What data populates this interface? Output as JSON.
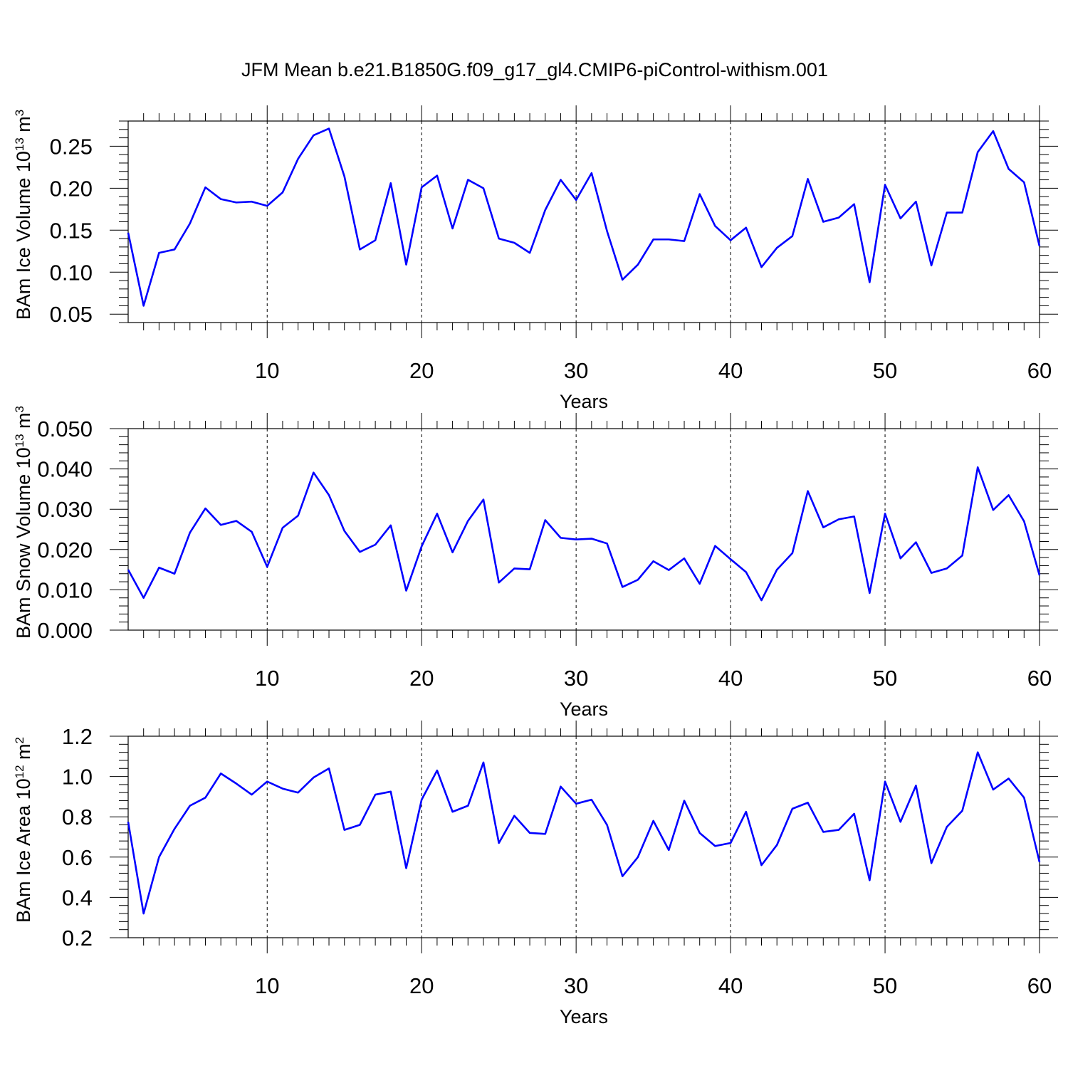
{
  "title": "JFM Mean b.e21.B1850G.f09_g17_gl4.CMIP6-piControl-withism.001",
  "chart_data": [
    {
      "type": "line",
      "id": "ice-volume",
      "ylabel": "BAm Ice Volume",
      "ylabel_scale": "10",
      "ylabel_scale_exp": "13",
      "ylabel_unit": "m",
      "ylabel_unit_exp": "3",
      "xlabel": "Years",
      "xlim": [
        1,
        60
      ],
      "ylim": [
        0.04,
        0.28
      ],
      "x_ticks": [
        10,
        20,
        30,
        40,
        50,
        60
      ],
      "y_ticks": [
        0.05,
        0.1,
        0.15,
        0.2,
        0.25
      ],
      "y_tick_labels": [
        "0.05",
        "0.10",
        "0.15",
        "0.20",
        "0.25"
      ],
      "grid_x": "dashed",
      "line_color": "#0000ff",
      "x": [
        1,
        2,
        3,
        4,
        5,
        6,
        7,
        8,
        9,
        10,
        11,
        12,
        13,
        14,
        15,
        16,
        17,
        18,
        19,
        20,
        21,
        22,
        23,
        24,
        25,
        26,
        27,
        28,
        29,
        30,
        31,
        32,
        33,
        34,
        35,
        36,
        37,
        38,
        39,
        40,
        41,
        42,
        43,
        44,
        45,
        46,
        47,
        48,
        49,
        50,
        51,
        52,
        53,
        54,
        55,
        56,
        57,
        58,
        59,
        60
      ],
      "values": [
        0.147,
        0.06,
        0.123,
        0.127,
        0.158,
        0.201,
        0.187,
        0.183,
        0.184,
        0.179,
        0.195,
        0.235,
        0.263,
        0.271,
        0.214,
        0.127,
        0.138,
        0.206,
        0.109,
        0.201,
        0.215,
        0.152,
        0.21,
        0.2,
        0.14,
        0.135,
        0.123,
        0.174,
        0.21,
        0.186,
        0.218,
        0.149,
        0.091,
        0.109,
        0.139,
        0.139,
        0.137,
        0.193,
        0.155,
        0.138,
        0.153,
        0.106,
        0.129,
        0.143,
        0.211,
        0.16,
        0.165,
        0.181,
        0.088,
        0.204,
        0.164,
        0.184,
        0.108,
        0.171,
        0.171,
        0.243,
        0.268,
        0.223,
        0.207,
        0.131
      ]
    },
    {
      "type": "line",
      "id": "snow-volume",
      "ylabel": "BAm Snow Volume",
      "ylabel_scale": "10",
      "ylabel_scale_exp": "13",
      "ylabel_unit": "m",
      "ylabel_unit_exp": "3",
      "xlabel": "Years",
      "xlim": [
        1,
        60
      ],
      "ylim": [
        0.0,
        0.05
      ],
      "x_ticks": [
        10,
        20,
        30,
        40,
        50,
        60
      ],
      "y_ticks": [
        0.0,
        0.01,
        0.02,
        0.03,
        0.04,
        0.05
      ],
      "y_tick_labels": [
        "0.000",
        "0.010",
        "0.020",
        "0.030",
        "0.040",
        "0.050"
      ],
      "grid_x": "dashed",
      "line_color": "#0000ff",
      "x": [
        1,
        2,
        3,
        4,
        5,
        6,
        7,
        8,
        9,
        10,
        11,
        12,
        13,
        14,
        15,
        16,
        17,
        18,
        19,
        20,
        21,
        22,
        23,
        24,
        25,
        26,
        27,
        28,
        29,
        30,
        31,
        32,
        33,
        34,
        35,
        36,
        37,
        38,
        39,
        40,
        41,
        42,
        43,
        44,
        45,
        46,
        47,
        48,
        49,
        50,
        51,
        52,
        53,
        54,
        55,
        56,
        57,
        58,
        59,
        60
      ],
      "values": [
        0.015,
        0.008,
        0.0155,
        0.014,
        0.0242,
        0.0302,
        0.0261,
        0.0271,
        0.0244,
        0.0157,
        0.0254,
        0.0284,
        0.0391,
        0.0335,
        0.0246,
        0.0194,
        0.0212,
        0.026,
        0.0098,
        0.0208,
        0.0289,
        0.0193,
        0.0271,
        0.0324,
        0.0118,
        0.0153,
        0.0151,
        0.0273,
        0.0229,
        0.0225,
        0.0227,
        0.0215,
        0.0107,
        0.0125,
        0.0171,
        0.0149,
        0.0178,
        0.0115,
        0.0209,
        0.0176,
        0.0144,
        0.0074,
        0.015,
        0.0191,
        0.0345,
        0.0255,
        0.0275,
        0.0282,
        0.0092,
        0.0289,
        0.0178,
        0.0218,
        0.0142,
        0.0153,
        0.0185,
        0.0404,
        0.0298,
        0.0335,
        0.027,
        0.0136
      ]
    },
    {
      "type": "line",
      "id": "ice-area",
      "ylabel": "BAm Ice Area",
      "ylabel_scale": "10",
      "ylabel_scale_exp": "12",
      "ylabel_unit": "m",
      "ylabel_unit_exp": "2",
      "xlabel": "Years",
      "xlim": [
        1,
        60
      ],
      "ylim": [
        0.2,
        1.2
      ],
      "x_ticks": [
        10,
        20,
        30,
        40,
        50,
        60
      ],
      "y_ticks": [
        0.2,
        0.4,
        0.6,
        0.8,
        1.0,
        1.2
      ],
      "y_tick_labels": [
        "0.2",
        "0.4",
        "0.6",
        "0.8",
        "1.0",
        "1.2"
      ],
      "grid_x": "dashed",
      "line_color": "#0000ff",
      "x": [
        1,
        2,
        3,
        4,
        5,
        6,
        7,
        8,
        9,
        10,
        11,
        12,
        13,
        14,
        15,
        16,
        17,
        18,
        19,
        20,
        21,
        22,
        23,
        24,
        25,
        26,
        27,
        28,
        29,
        30,
        31,
        32,
        33,
        34,
        35,
        36,
        37,
        38,
        39,
        40,
        41,
        42,
        43,
        44,
        45,
        46,
        47,
        48,
        49,
        50,
        51,
        52,
        53,
        54,
        55,
        56,
        57,
        58,
        59,
        60
      ],
      "values": [
        0.775,
        0.32,
        0.6,
        0.74,
        0.855,
        0.895,
        1.015,
        0.965,
        0.91,
        0.975,
        0.94,
        0.92,
        0.995,
        1.04,
        0.735,
        0.76,
        0.91,
        0.925,
        0.545,
        0.885,
        1.03,
        0.825,
        0.855,
        1.07,
        0.67,
        0.805,
        0.72,
        0.715,
        0.95,
        0.865,
        0.885,
        0.76,
        0.505,
        0.6,
        0.78,
        0.635,
        0.88,
        0.72,
        0.655,
        0.67,
        0.825,
        0.56,
        0.66,
        0.84,
        0.87,
        0.725,
        0.735,
        0.815,
        0.485,
        0.975,
        0.775,
        0.955,
        0.57,
        0.75,
        0.83,
        1.12,
        0.935,
        0.99,
        0.895,
        0.575
      ]
    }
  ]
}
